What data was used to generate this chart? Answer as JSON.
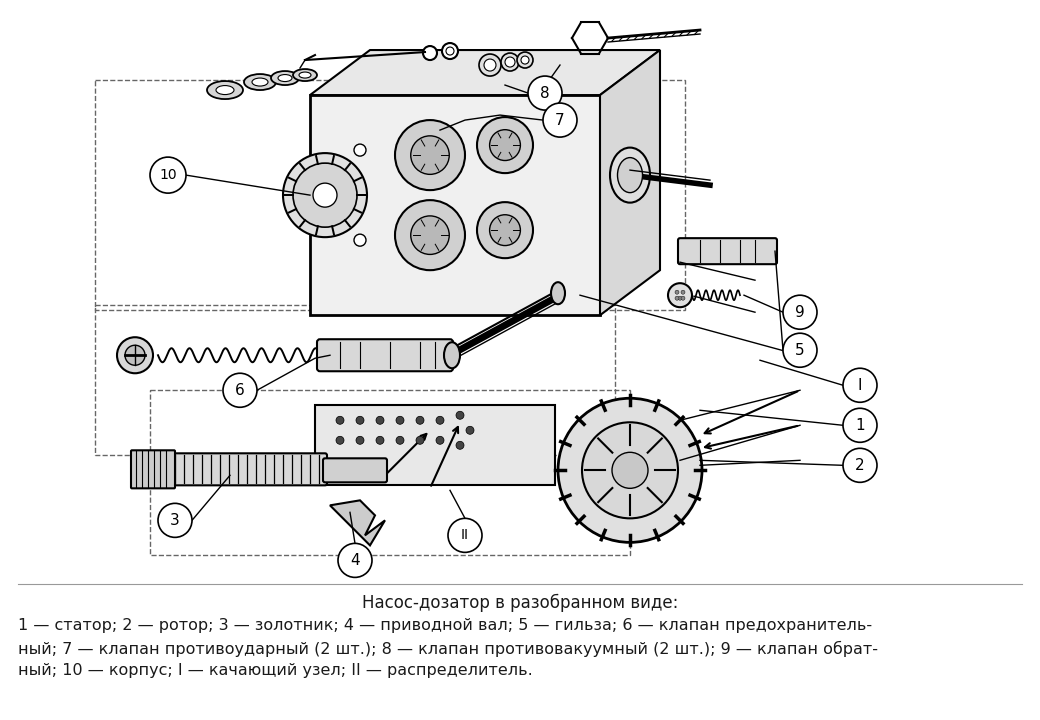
{
  "title": "Насос-дозатор в разобранном виде:",
  "caption_line1": "1 — статор; 2 — ротор; 3 — золотник; 4 — приводной вал; 5 — гильза; 6 — клапан предохранитель-",
  "caption_line2": "ный; 7 — клапан противоударный (2 шт.); 8 — клапан противовакуумный (2 шт.); 9 — клапан обрат-",
  "caption_line3": "ный; 10 — корпус; I — качающий узел; II — распределитель.",
  "bg_color": "#ffffff",
  "text_color": "#1a1a1a",
  "title_fontsize": 12,
  "caption_fontsize": 11.5,
  "fig_width": 10.4,
  "fig_height": 7.2,
  "dpi": 100
}
